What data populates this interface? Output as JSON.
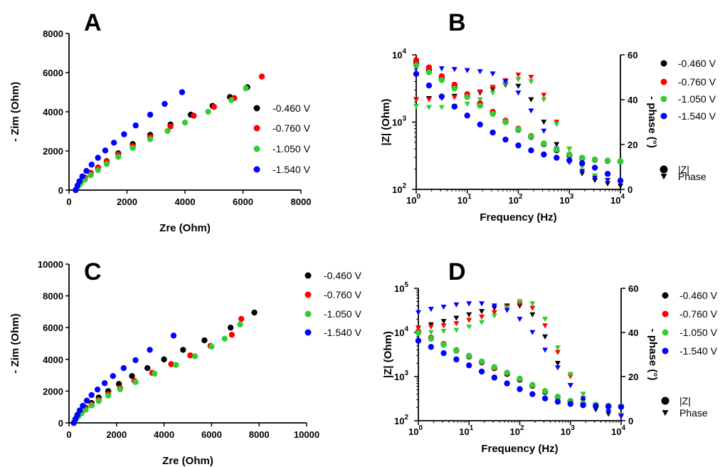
{
  "colors": {
    "-0.460 V": "#000000",
    "-0.760 V": "#ff0000",
    "-1.050 V": "#33cc33",
    "-1.540 V": "#0000ff"
  },
  "chart_data": [
    {
      "panel": "A",
      "type": "scatter",
      "xlabel": "Zre (Ohm)",
      "ylabel": "- Zim (Ohm)",
      "xlim": [
        0,
        8000
      ],
      "ylim": [
        0,
        8000
      ],
      "xticks": [
        "0",
        "2000",
        "4000",
        "6000",
        "8000"
      ],
      "yticks": [
        "0",
        "2000",
        "4000",
        "6000",
        "8000"
      ],
      "legend": [
        "-0.460  V",
        "-0.760 V",
        "-1.050 V",
        "-1.540 V"
      ],
      "series": [
        {
          "name": "-0.460  V",
          "color": "#000000",
          "x": [
            230,
            300,
            400,
            550,
            750,
            1000,
            1300,
            1700,
            2200,
            2800,
            3500,
            4200,
            4950,
            5550,
            6150
          ],
          "y": [
            0,
            200,
            380,
            600,
            860,
            1150,
            1480,
            1880,
            2350,
            2820,
            3350,
            3850,
            4300,
            4750,
            5250
          ]
        },
        {
          "name": "-0.760 V",
          "color": "#ff0000",
          "x": [
            230,
            300,
            400,
            550,
            750,
            1000,
            1300,
            1700,
            2200,
            2800,
            3500,
            4300,
            5000,
            5700,
            6650
          ],
          "y": [
            0,
            220,
            420,
            640,
            880,
            1150,
            1450,
            1820,
            2250,
            2720,
            3250,
            3800,
            4250,
            4700,
            5800
          ]
        },
        {
          "name": "-1.050 V",
          "color": "#33cc33",
          "x": [
            230,
            300,
            400,
            550,
            750,
            1000,
            1300,
            1700,
            2200,
            2800,
            3400,
            4000,
            4800,
            5600,
            6100
          ],
          "y": [
            0,
            170,
            330,
            540,
            760,
            1020,
            1330,
            1700,
            2150,
            2600,
            3020,
            3450,
            4000,
            4600,
            5200
          ]
        },
        {
          "name": "-1.540 V",
          "color": "#0000ff",
          "x": [
            230,
            290,
            360,
            460,
            600,
            780,
            1000,
            1250,
            1550,
            1900,
            2300,
            2800,
            3300,
            3900
          ],
          "y": [
            0,
            230,
            450,
            700,
            980,
            1300,
            1650,
            2020,
            2420,
            2850,
            3300,
            3850,
            4400,
            5000
          ]
        }
      ]
    },
    {
      "panel": "B",
      "type": "scatter",
      "xlabel": "Frequency (Hz)",
      "ylabel": "|Z| (Ohm)",
      "y2label": "- phase (°)",
      "xscale": "log",
      "yscale": "log",
      "xlim": [
        1,
        10000
      ],
      "ylim": [
        100,
        10000
      ],
      "y2lim": [
        0,
        60
      ],
      "y2ticks": [
        "0",
        "20",
        "40",
        "60"
      ],
      "legend": [
        "-0.460  V",
        "-0.760 V",
        "-1.050 V",
        "-1.540 V"
      ],
      "marker_legend": [
        "|Z|",
        "Phase"
      ],
      "series": [
        {
          "name": "-0.460  V",
          "color": "#000000",
          "freq": [
            1,
            1.78,
            3.16,
            5.62,
            10,
            17.8,
            31.6,
            56.2,
            100,
            178,
            316,
            562,
            1000,
            1780,
            3160,
            5620,
            10000
          ],
          "z": [
            7500,
            5900,
            4400,
            3300,
            2400,
            1800,
            1350,
            1000,
            770,
            600,
            470,
            380,
            320,
            290,
            275,
            265,
            260
          ],
          "phase": [
            40,
            40.5,
            41,
            41.5,
            42,
            43,
            44.5,
            46.5,
            46,
            40,
            30,
            20,
            12,
            7,
            4,
            2.5,
            1.5
          ]
        },
        {
          "name": "-0.760 V",
          "color": "#ff0000",
          "freq": [
            1,
            1.78,
            3.16,
            5.62,
            10,
            17.8,
            31.6,
            56.2,
            100,
            178,
            316,
            562,
            1000,
            1780,
            3160,
            5620,
            10000
          ],
          "z": [
            8300,
            6500,
            4800,
            3600,
            2600,
            1900,
            1420,
            1050,
            800,
            620,
            480,
            390,
            330,
            295,
            278,
            268,
            262
          ],
          "phase": [
            40,
            40,
            40.5,
            41,
            42,
            43.5,
            45.5,
            48.5,
            51,
            50,
            42,
            30,
            18,
            10,
            6,
            4,
            3
          ]
        },
        {
          "name": "-1.050 V",
          "color": "#33cc33",
          "freq": [
            1,
            1.78,
            3.16,
            5.62,
            10,
            17.8,
            31.6,
            56.2,
            100,
            178,
            316,
            562,
            1000,
            1780,
            3160,
            5620,
            10000
          ],
          "z": [
            7000,
            5500,
            4200,
            3150,
            2350,
            1750,
            1320,
            1000,
            780,
            610,
            480,
            390,
            330,
            295,
            278,
            268,
            262
          ],
          "phase": [
            37,
            36.5,
            36.5,
            37,
            38,
            40,
            43,
            47,
            49,
            48,
            40,
            29,
            18,
            10,
            6,
            4,
            3
          ]
        },
        {
          "name": "-1.540 V",
          "color": "#0000ff",
          "freq": [
            1,
            1.78,
            3.16,
            5.62,
            10,
            17.8,
            31.6,
            56.2,
            100,
            178,
            316,
            562,
            1000,
            1780,
            3160,
            5620,
            10000
          ],
          "z": [
            5200,
            3500,
            2400,
            1700,
            1250,
            920,
            700,
            550,
            450,
            380,
            330,
            295,
            270,
            245,
            210,
            170,
            135
          ],
          "phase": [
            54,
            54,
            53.8,
            53.5,
            53,
            52.5,
            51.5,
            48,
            43,
            35,
            26,
            18,
            12,
            8,
            5,
            4,
            3
          ]
        }
      ]
    },
    {
      "panel": "C",
      "type": "scatter",
      "xlabel": "Zre (Ohm)",
      "ylabel": "- Zim (Ohm)",
      "xlim": [
        0,
        10000
      ],
      "ylim": [
        0,
        10000
      ],
      "xticks": [
        "0",
        "2000",
        "4000",
        "6000",
        "8000",
        "10000"
      ],
      "yticks": [
        "0",
        "2000",
        "4000",
        "6000",
        "8000",
        "10000"
      ],
      "legend": [
        "-0.460 V",
        "-0.760 V",
        "-1.050 V",
        "-1.540 V"
      ],
      "series": [
        {
          "name": "-0.460 V",
          "color": "#000000",
          "x": [
            200,
            280,
            380,
            520,
            700,
            950,
            1250,
            1650,
            2100,
            2650,
            3300,
            4000,
            4800,
            5700,
            6800,
            7800
          ],
          "y": [
            0,
            230,
            440,
            680,
            950,
            1250,
            1600,
            2000,
            2450,
            2950,
            3450,
            4000,
            4600,
            5200,
            6000,
            6950
          ]
        },
        {
          "name": "-0.760 V",
          "color": "#ff0000",
          "x": [
            200,
            280,
            380,
            520,
            700,
            950,
            1250,
            1650,
            2150,
            2750,
            3500,
            4300,
            5100,
            5950,
            6850,
            7250
          ],
          "y": [
            0,
            220,
            420,
            640,
            880,
            1150,
            1450,
            1800,
            2200,
            2650,
            3150,
            3700,
            4250,
            4850,
            5550,
            6550
          ]
        },
        {
          "name": "-1.050 V",
          "color": "#33cc33",
          "x": [
            200,
            280,
            380,
            520,
            700,
            950,
            1250,
            1650,
            2150,
            2800,
            3600,
            4500,
            5300,
            6000,
            6550,
            7200
          ],
          "y": [
            0,
            200,
            390,
            600,
            830,
            1090,
            1380,
            1720,
            2120,
            2570,
            3100,
            3650,
            4200,
            4800,
            5300,
            6200
          ]
        },
        {
          "name": "-1.540 V",
          "color": "#0000ff",
          "x": [
            200,
            270,
            350,
            450,
            580,
            750,
            950,
            1200,
            1500,
            1850,
            2300,
            2800,
            3400,
            4400
          ],
          "y": [
            0,
            250,
            500,
            780,
            1080,
            1400,
            1750,
            2100,
            2500,
            2950,
            3450,
            3950,
            4600,
            5500
          ]
        }
      ]
    },
    {
      "panel": "D",
      "type": "scatter",
      "xlabel": "Frequency (Hz)",
      "ylabel": "|Z| (Ohm)",
      "y2label": "- phase (°)",
      "xscale": "log",
      "yscale": "log",
      "xlim": [
        1,
        10000
      ],
      "ylim": [
        100,
        100000
      ],
      "y2lim": [
        0,
        60
      ],
      "y2ticks": [
        "0",
        "20",
        "40",
        "60"
      ],
      "legend": [
        "-0.460  V",
        "-0.760 V",
        "-1.050 V",
        "-1.540 V"
      ],
      "marker_legend": [
        "|Z|",
        "Phase"
      ],
      "series": [
        {
          "name": "-0.460  V",
          "color": "#000000",
          "freq": [
            1,
            1.78,
            3.16,
            5.62,
            10,
            17.8,
            31.6,
            56.2,
            100,
            178,
            316,
            562,
            1000,
            1780,
            3160,
            5620,
            10000
          ],
          "z": [
            10000,
            7300,
            5300,
            3900,
            2850,
            2100,
            1550,
            1150,
            850,
            620,
            450,
            340,
            275,
            240,
            225,
            215,
            210
          ],
          "phase": [
            42,
            43.5,
            45,
            46.5,
            48,
            49.5,
            51,
            52,
            52,
            48,
            38,
            26,
            16,
            9,
            5,
            3,
            2
          ]
        },
        {
          "name": "-0.760 V",
          "color": "#ff0000",
          "freq": [
            1,
            1.78,
            3.16,
            5.62,
            10,
            17.8,
            31.6,
            56.2,
            100,
            178,
            316,
            562,
            1000,
            1780,
            3160,
            5620,
            10000
          ],
          "z": [
            10500,
            7600,
            5500,
            4000,
            2950,
            2150,
            1600,
            1200,
            880,
            640,
            470,
            350,
            280,
            245,
            228,
            218,
            212
          ],
          "phase": [
            42,
            42.5,
            43,
            44,
            45.5,
            47,
            49,
            51.5,
            53,
            51,
            43,
            31,
            20,
            12,
            7,
            4,
            2.5
          ]
        },
        {
          "name": "-1.050 V",
          "color": "#33cc33",
          "freq": [
            1,
            1.78,
            3.16,
            5.62,
            10,
            17.8,
            31.6,
            56.2,
            100,
            178,
            316,
            562,
            1000,
            1780,
            3160,
            5620,
            10000
          ],
          "z": [
            9800,
            7200,
            5300,
            3950,
            2950,
            2200,
            1650,
            1230,
            900,
            650,
            470,
            350,
            282,
            246,
            229,
            218,
            212
          ],
          "phase": [
            40,
            40,
            40.5,
            41,
            42.5,
            44.5,
            47.5,
            51,
            54,
            53,
            46,
            33,
            21,
            12,
            7,
            4,
            2.5
          ]
        },
        {
          "name": "-1.540 V",
          "color": "#0000ff",
          "freq": [
            1,
            1.78,
            3.16,
            5.62,
            10,
            17.8,
            31.6,
            56.2,
            100,
            178,
            316,
            562,
            1000,
            1780,
            3160,
            5620,
            10000
          ],
          "z": [
            6500,
            4700,
            3400,
            2450,
            1800,
            1300,
            950,
            700,
            520,
            400,
            320,
            270,
            240,
            225,
            215,
            210,
            205
          ],
          "phase": [
            49,
            50.5,
            51.5,
            52.5,
            53,
            53,
            52,
            50,
            46,
            40,
            32,
            24,
            16,
            10,
            6,
            4,
            2
          ]
        }
      ]
    }
  ]
}
